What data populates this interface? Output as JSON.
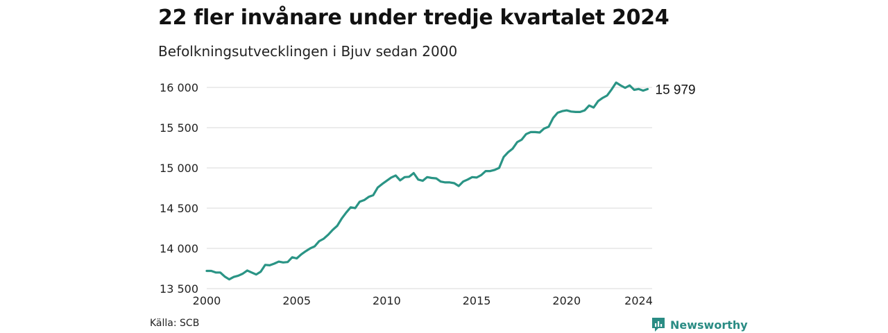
{
  "header": {
    "title": "22 fler invånare under tredje kvartalet 2024",
    "subtitle": "Befolkningsutvecklingen i Bjuv sedan 2000"
  },
  "footer": {
    "source": "Källa: SCB",
    "brand": "Newsworthy",
    "brand_color": "#2a8c84"
  },
  "chart_data": {
    "type": "line",
    "line_color": "#2a9485",
    "grid": true,
    "ylim": [
      13500,
      16000
    ],
    "yticks": [
      {
        "value": 13500,
        "label": "13 500"
      },
      {
        "value": 14000,
        "label": "14 000"
      },
      {
        "value": 14500,
        "label": "14 500"
      },
      {
        "value": 15000,
        "label": "15 000"
      },
      {
        "value": 15500,
        "label": "15 500"
      },
      {
        "value": 16000,
        "label": "16 000"
      }
    ],
    "xticks": [
      {
        "value": 2000,
        "label": "2000"
      },
      {
        "value": 2005,
        "label": "2005"
      },
      {
        "value": 2010,
        "label": "2010"
      },
      {
        "value": 2015,
        "label": "2015"
      },
      {
        "value": 2020,
        "label": "2020"
      },
      {
        "value": 2024,
        "label": "2024"
      }
    ],
    "xlim": [
      2000,
      2024.75
    ],
    "end_label": "15 979",
    "series": [
      {
        "x": [
          2000.0,
          2000.25,
          2000.5,
          2000.75,
          2001.0,
          2001.25,
          2001.5,
          2001.75,
          2002.0,
          2002.25,
          2002.5,
          2002.75,
          2003.0,
          2003.25,
          2003.5,
          2003.75,
          2004.0,
          2004.25,
          2004.5,
          2004.75,
          2005.0,
          2005.25,
          2005.5,
          2005.75,
          2006.0,
          2006.25,
          2006.5,
          2006.75,
          2007.0,
          2007.25,
          2007.5,
          2007.75,
          2008.0,
          2008.25,
          2008.5,
          2008.75,
          2009.0,
          2009.25,
          2009.5,
          2009.75,
          2010.0,
          2010.25,
          2010.5,
          2010.75,
          2011.0,
          2011.25,
          2011.5,
          2011.75,
          2012.0,
          2012.25,
          2012.5,
          2012.75,
          2013.0,
          2013.25,
          2013.5,
          2013.75,
          2014.0,
          2014.25,
          2014.5,
          2014.75,
          2015.0,
          2015.25,
          2015.5,
          2015.75,
          2016.0,
          2016.25,
          2016.5,
          2016.75,
          2017.0,
          2017.25,
          2017.5,
          2017.75,
          2018.0,
          2018.25,
          2018.5,
          2018.75,
          2019.0,
          2019.25,
          2019.5,
          2019.75,
          2020.0,
          2020.25,
          2020.5,
          2020.75,
          2021.0,
          2021.25,
          2021.5,
          2021.75,
          2022.0,
          2022.25,
          2022.5,
          2022.75,
          2023.0,
          2023.25,
          2023.5,
          2023.75,
          2024.0,
          2024.25,
          2024.5
        ],
        "y": [
          13720,
          13720,
          13700,
          13700,
          13650,
          13615,
          13645,
          13660,
          13685,
          13725,
          13700,
          13675,
          13710,
          13795,
          13790,
          13810,
          13835,
          13825,
          13830,
          13890,
          13875,
          13925,
          13965,
          14000,
          14025,
          14090,
          14120,
          14170,
          14230,
          14280,
          14370,
          14445,
          14510,
          14500,
          14580,
          14600,
          14640,
          14660,
          14755,
          14800,
          14840,
          14880,
          14905,
          14845,
          14885,
          14890,
          14935,
          14855,
          14840,
          14885,
          14875,
          14870,
          14830,
          14820,
          14820,
          14810,
          14775,
          14830,
          14855,
          14885,
          14880,
          14910,
          14960,
          14960,
          14975,
          15000,
          15135,
          15195,
          15240,
          15320,
          15350,
          15420,
          15445,
          15445,
          15440,
          15490,
          15510,
          15620,
          15685,
          15705,
          15715,
          15700,
          15695,
          15695,
          15715,
          15775,
          15750,
          15830,
          15870,
          15900,
          15975,
          16060,
          16025,
          15995,
          16025,
          15970,
          15980,
          15960,
          15979
        ]
      }
    ]
  }
}
